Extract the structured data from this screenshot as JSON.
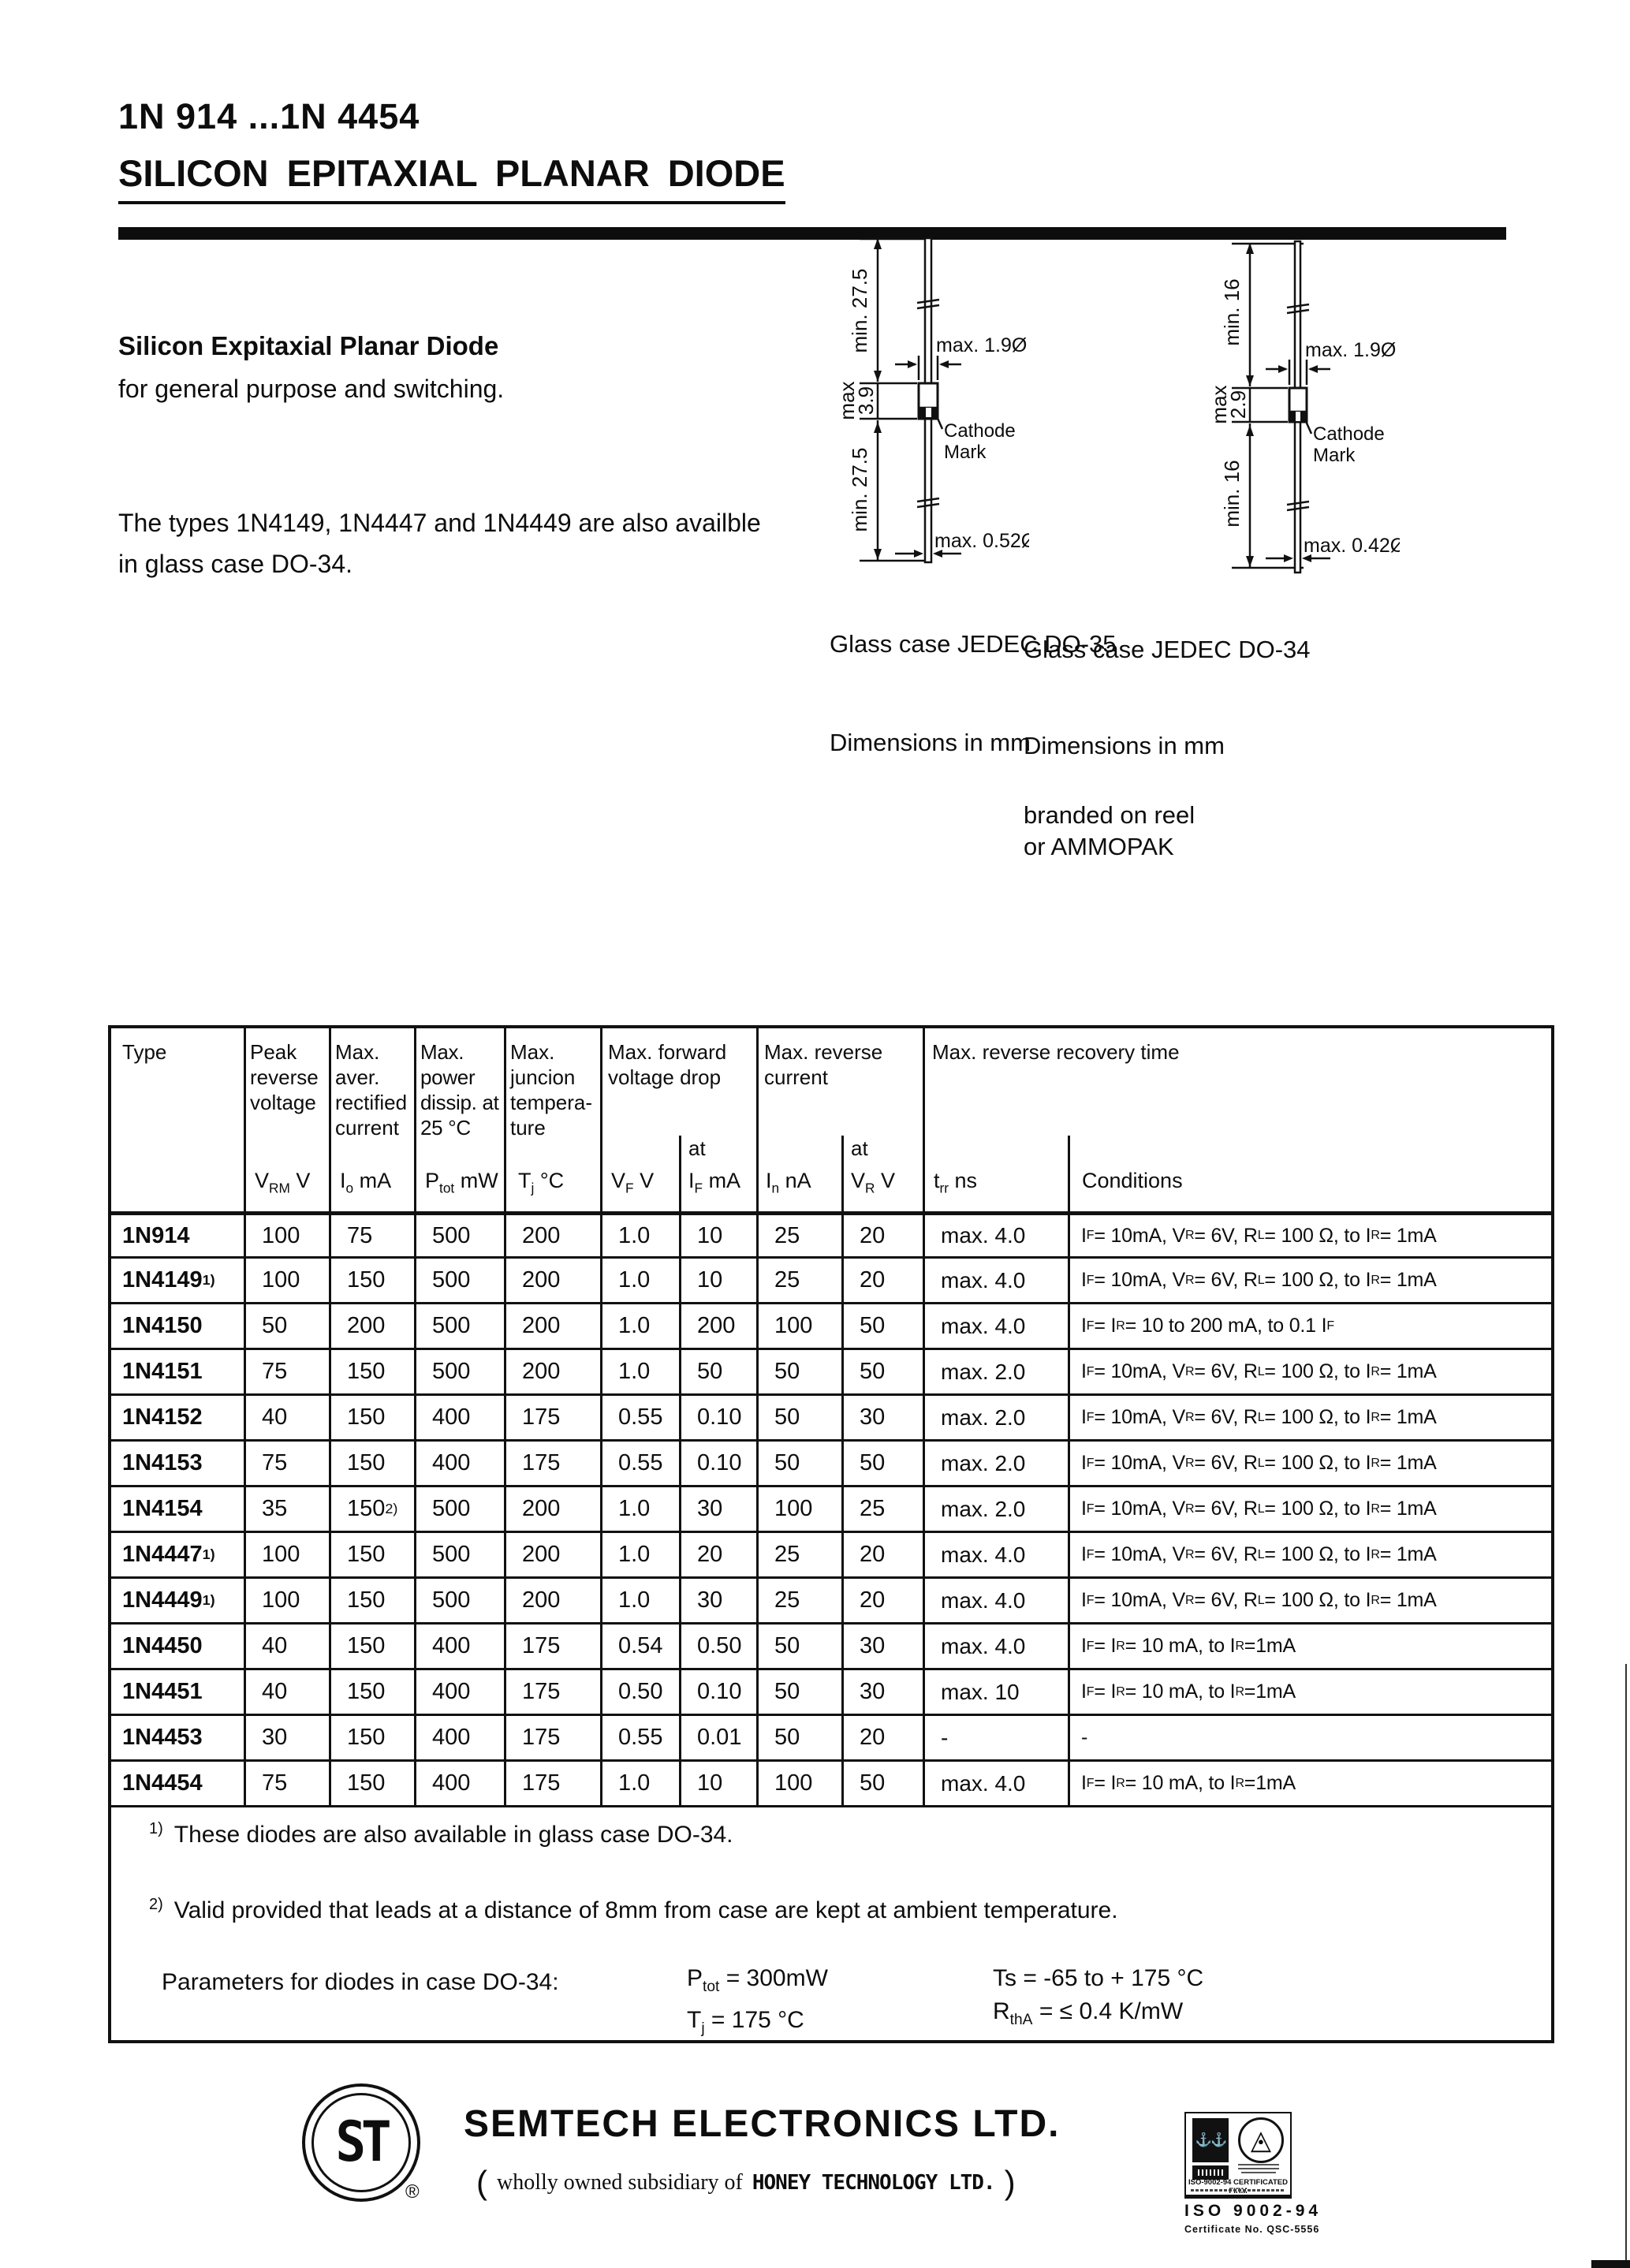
{
  "page": {
    "part_range": "1N 914 ...1N 4454",
    "title": "SILICON EPITAXIAL PLANAR DIODE",
    "desc_bold": "Silicon Expitaxial Planar Diode",
    "desc_line2": "for general purpose and switching.",
    "note_line1": "The types 1N4149, 1N4447 and 1N4449 are also availble",
    "note_line2": "in glass case DO-34."
  },
  "diagrams": {
    "do35": {
      "caption": "Glass case JEDEC DO-35",
      "dim_note": "Dimensions in mm",
      "labels": {
        "top_lead": "min. 27.5",
        "body_line1": "max",
        "body_line2": "3.9",
        "bottom_lead": "min. 27.5",
        "body_dia": "max. 1.9Ø",
        "cathode_line1": "Cathode",
        "cathode_line2": "Mark",
        "lead_dia": "max. 0.52Ø"
      }
    },
    "do34": {
      "caption": "Glass case JEDEC DO-34",
      "dim_note": "Dimensions in mm",
      "packing_line1": "branded on reel",
      "packing_line2": "or AMMOPAK",
      "labels": {
        "top_lead": "min. 16",
        "body_line1": "max",
        "body_line2": "2.9",
        "bottom_lead": "min. 16",
        "body_dia": "max. 1.9Ø",
        "cathode_line1": "Cathode",
        "cathode_line2": "Mark",
        "lead_dia": "max. 0.42Ø"
      }
    }
  },
  "table": {
    "header": {
      "type": "Type",
      "peak": "Peak reverse voltage",
      "avg_rect": "Max. aver. rectified current",
      "power": "Max. power dissip. at 25 °C",
      "junction": "Max. juncion tempera-ture",
      "forward": "Max. forward voltage drop",
      "reverse": "Max. reverse current",
      "recovery": "Max. reverse recovery time",
      "at_forward": "at",
      "at_reverse": "at"
    },
    "units": {
      "vrm": "V_RM V",
      "io": "I_o mA",
      "ptot": "P_tot mW",
      "tj": "T_j °C",
      "vf": "V_F V",
      "if": "I_F mA",
      "ir": "I_n nA",
      "vr": "V_R V",
      "trr": "t_rr ns",
      "cond": "Conditions"
    },
    "rows": [
      {
        "type": "1N914",
        "vrm": "100",
        "io": "75",
        "ptot": "500",
        "tj": "200",
        "vf": "1.0",
        "if": "10",
        "ir": "25",
        "vr": "20",
        "trr": "max. 4.0",
        "cond": "I_F = 10mA, V_R = 6V, R_L = 100 Ω, to I_R = 1mA"
      },
      {
        "type": "1N4149^1)",
        "vrm": "100",
        "io": "150",
        "ptot": "500",
        "tj": "200",
        "vf": "1.0",
        "if": "10",
        "ir": "25",
        "vr": "20",
        "trr": "max. 4.0",
        "cond": "I_F = 10mA, V_R = 6V, R_L = 100 Ω, to I_R = 1mA"
      },
      {
        "type": "1N4150",
        "vrm": "50",
        "io": "200",
        "ptot": "500",
        "tj": "200",
        "vf": "1.0",
        "if": "200",
        "ir": "100",
        "vr": "50",
        "trr": "max. 4.0",
        "cond": "I_F = I_R = 10 to 200 mA, to 0.1 I_F"
      },
      {
        "type": "1N4151",
        "vrm": "75",
        "io": "150",
        "ptot": "500",
        "tj": "200",
        "vf": "1.0",
        "if": "50",
        "ir": "50",
        "vr": "50",
        "trr": "max. 2.0",
        "cond": "I_F = 10mA, V_R = 6V, R_L = 100 Ω, to I_R = 1mA"
      },
      {
        "type": "1N4152",
        "vrm": "40",
        "io": "150",
        "ptot": "400",
        "tj": "175",
        "vf": "0.55",
        "if": "0.10",
        "ir": "50",
        "vr": "30",
        "trr": "max. 2.0",
        "cond": "I_F = 10mA, V_R = 6V, R_L = 100 Ω, to I_R = 1mA"
      },
      {
        "type": "1N4153",
        "vrm": "75",
        "io": "150",
        "ptot": "400",
        "tj": "175",
        "vf": "0.55",
        "if": "0.10",
        "ir": "50",
        "vr": "50",
        "trr": "max. 2.0",
        "cond": "I_F = 10mA, V_R = 6V, R_L = 100 Ω, to I_R = 1mA"
      },
      {
        "type": "1N4154",
        "vrm": "35",
        "io": "150 ^2)",
        "ptot": "500",
        "tj": "200",
        "vf": "1.0",
        "if": "30",
        "ir": "100",
        "vr": "25",
        "trr": "max. 2.0",
        "cond": "I_F = 10mA, V_R = 6V, R_L = 100 Ω, to I_R = 1mA"
      },
      {
        "type": "1N4447^1)",
        "vrm": "100",
        "io": "150",
        "ptot": "500",
        "tj": "200",
        "vf": "1.0",
        "if": "20",
        "ir": "25",
        "vr": "20",
        "trr": "max. 4.0",
        "cond": "I_F = 10mA, V_R = 6V, R_L = 100 Ω, to I_R = 1mA"
      },
      {
        "type": "1N4449^1)",
        "vrm": "100",
        "io": "150",
        "ptot": "500",
        "tj": "200",
        "vf": "1.0",
        "if": "30",
        "ir": "25",
        "vr": "20",
        "trr": "max. 4.0",
        "cond": "I_F = 10mA, V_R = 6V, R_L = 100 Ω, to I_R = 1mA"
      },
      {
        "type": "1N4450",
        "vrm": "40",
        "io": "150",
        "ptot": "400",
        "tj": "175",
        "vf": "0.54",
        "if": "0.50",
        "ir": "50",
        "vr": "30",
        "trr": "max. 4.0",
        "cond": "I_F = I_R = 10 mA, to I_R =1mA"
      },
      {
        "type": "1N4451",
        "vrm": "40",
        "io": "150",
        "ptot": "400",
        "tj": "175",
        "vf": "0.50",
        "if": "0.10",
        "ir": "50",
        "vr": "30",
        "trr": "max. 10",
        "cond": "I_F = I_R = 10 mA, to I_R =1mA"
      },
      {
        "type": "1N4453",
        "vrm": "30",
        "io": "150",
        "ptot": "400",
        "tj": "175",
        "vf": "0.55",
        "if": "0.01",
        "ir": "50",
        "vr": "20",
        "trr": "-",
        "cond": "-"
      },
      {
        "type": "1N4454",
        "vrm": "75",
        "io": "150",
        "ptot": "400",
        "tj": "175",
        "vf": "1.0",
        "if": "10",
        "ir": "100",
        "vr": "50",
        "trr": "max. 4.0",
        "cond": "I_F = I_R = 10 mA, to I_R =1mA"
      }
    ],
    "footnotes": [
      {
        "marker": "1)",
        "text": "These diodes are also available in glass case DO-34."
      },
      {
        "marker": "2)",
        "text": "Valid provided that leads at a distance of 8mm from case are kept at ambient temperature."
      }
    ],
    "params": {
      "label": "Parameters for diodes in case DO-34:",
      "p1": "P_tot = 300mW",
      "p2": "T_j  = 175 °C",
      "p3": "Ts  = -65 to + 175 °C",
      "p4": "R_thA = ≤ 0.4 K/mW"
    }
  },
  "footer": {
    "logo_text": "ST",
    "registered": "®",
    "company": "SEMTECH ELECTRONICS LTD.",
    "sub_open": "(",
    "sub_text": "wholly owned subsidiary of",
    "sub_brand": "HONEY TECHNOLOGY LTD.",
    "sub_close": ")",
    "anchor_glyphs": "⚓⚓",
    "cert_triangle": "△",
    "cert_dot": "●",
    "cert_firm": "ISO-9002-94 CERTIFICATED FIRM",
    "cert_iso": "ISO 9002-94",
    "cert_no": "Certificate No. QSC-5556"
  }
}
